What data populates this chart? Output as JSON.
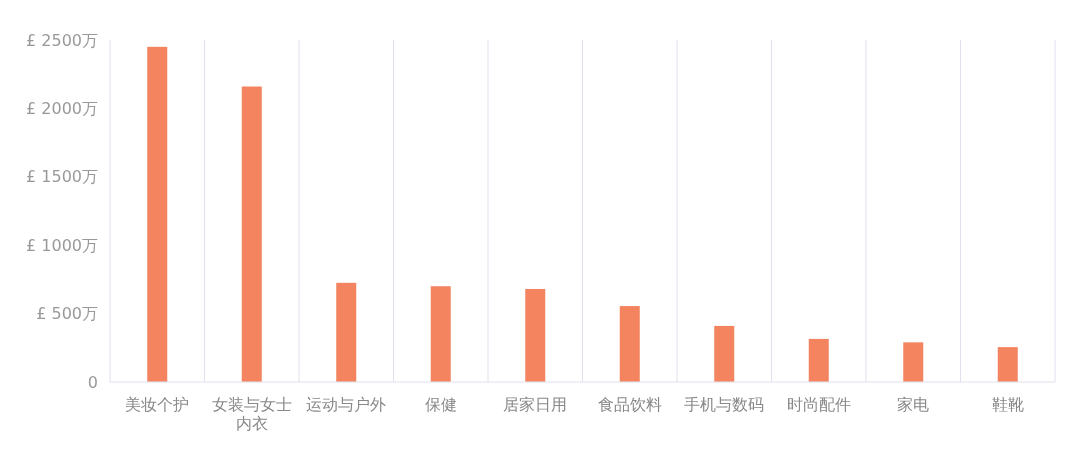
{
  "chart_data": {
    "type": "bar",
    "categories": [
      "美妆个护",
      "女装与女士内衣",
      "运动与户外",
      "保健",
      "居家日用",
      "食品饮料",
      "手机与数码",
      "时尚配件",
      "家电",
      "鞋靴"
    ],
    "values": [
      2450,
      2160,
      725,
      700,
      680,
      555,
      410,
      315,
      290,
      255
    ],
    "color": "#f4845f",
    "ylim": [
      0,
      2500
    ],
    "yticks": [
      0,
      {
        "value": 500,
        "label": "£ 500万"
      },
      {
        "value": 1000,
        "label": "£ 1000万"
      },
      {
        "value": 1500,
        "label": "£ 1500万"
      },
      {
        "value": 2000,
        "label": "£ 2000万"
      },
      {
        "value": 2500,
        "label": "£ 2500万"
      }
    ],
    "grid": "x"
  }
}
